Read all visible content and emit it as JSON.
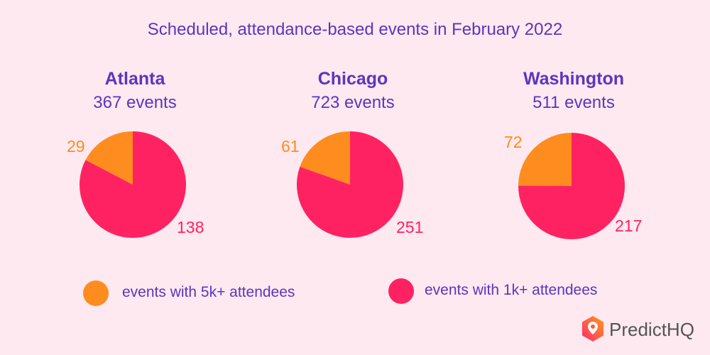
{
  "chart_data": {
    "type": "pie",
    "title": "Scheduled, attendance-based events in February 2022",
    "legend": [
      {
        "name": "events with 5k+ attendees",
        "color": "#ff8c1e"
      },
      {
        "name": "events with 1k+ attendees",
        "color": "#ff2262"
      }
    ],
    "legend_placement": "bottom",
    "pies": [
      {
        "city": "Atlanta",
        "total_label": "367 events",
        "values": [
          29,
          138
        ]
      },
      {
        "city": "Chicago",
        "total_label": "723 events",
        "values": [
          61,
          251
        ]
      },
      {
        "city": "Washington",
        "total_label": "511 events",
        "values": [
          72,
          217
        ]
      }
    ]
  },
  "brand": {
    "name": "PredictHQ",
    "icon": "predicthq-logo-icon"
  }
}
